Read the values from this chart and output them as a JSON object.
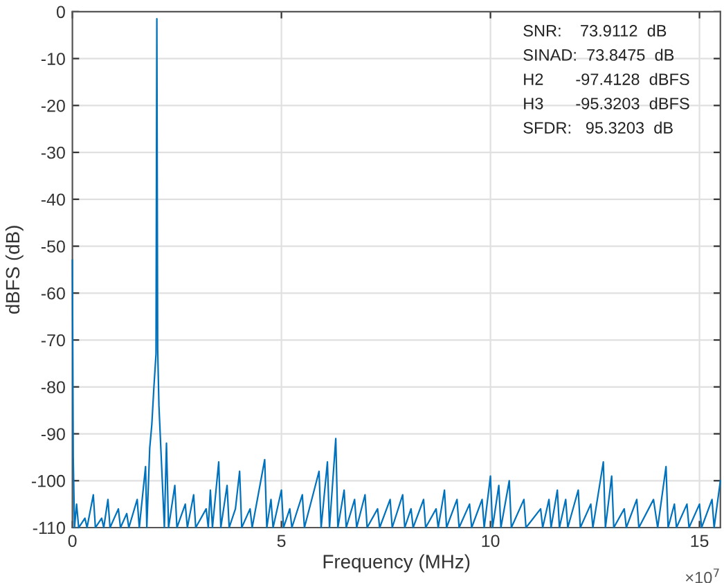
{
  "chart_data": {
    "type": "line",
    "xlabel": "Frequency (MHz)",
    "ylabel": "dBFS (dB)",
    "xlim": [
      0,
      15.5
    ],
    "xticks": [
      0,
      5,
      10,
      15
    ],
    "ylim": [
      -110,
      0
    ],
    "yticks": [
      -110,
      -100,
      -90,
      -80,
      -70,
      -60,
      -50,
      -40,
      -30,
      -20,
      -10,
      0
    ],
    "grid": true,
    "annotations": [
      "SNR:    73.9112  dB",
      "SINAD:  73.8475  dB",
      "H2       -97.4128  dBFS",
      "H3       -95.3203  dBFS",
      "SFDR:   95.3203  dB",
      "×10$^{7}$"
    ],
    "series": [
      {
        "color": "#0072bd",
        "x": [
          0,
          0.02,
          0.05,
          0.1,
          0.15,
          0.3,
          0.35,
          0.5,
          0.55,
          0.7,
          0.75,
          0.85,
          0.9,
          1.1,
          1.15,
          1.3,
          1.35,
          1.55,
          1.6,
          1.75,
          1.78,
          1.85,
          1.9,
          1.95,
          2.0,
          2.02,
          2.04,
          2.07,
          2.1,
          2.15,
          2.2,
          2.25,
          2.3,
          2.45,
          2.5,
          2.7,
          2.75,
          2.9,
          2.95,
          3.2,
          3.25,
          3.3,
          3.35,
          3.5,
          3.55,
          3.7,
          3.75,
          3.9,
          4.0,
          4.05,
          4.25,
          4.3,
          4.6,
          4.65,
          4.75,
          4.8,
          5.0,
          5.05,
          5.2,
          5.25,
          5.5,
          5.55,
          5.9,
          5.95,
          6.1,
          6.15,
          6.3,
          6.35,
          6.5,
          6.55,
          6.75,
          6.8,
          7.0,
          7.05,
          7.3,
          7.35,
          7.6,
          7.65,
          7.9,
          7.95,
          8.1,
          8.15,
          8.4,
          8.45,
          8.7,
          8.75,
          8.9,
          8.95,
          9.2,
          9.25,
          9.5,
          9.55,
          9.8,
          9.85,
          10.0,
          10.05,
          10.2,
          10.25,
          10.45,
          10.5,
          10.8,
          10.85,
          11.2,
          11.25,
          11.4,
          11.45,
          11.6,
          11.65,
          11.8,
          11.85,
          12.1,
          12.15,
          12.4,
          12.45,
          12.7,
          12.75,
          12.9,
          12.95,
          13.2,
          13.25,
          13.5,
          13.55,
          13.9,
          14.0,
          14.2,
          14.25,
          14.4,
          14.45,
          14.7,
          14.75,
          15.0,
          15.05,
          15.3,
          15.35,
          15.5
        ],
        "values": [
          -53,
          -95,
          -110,
          -105,
          -110,
          -108,
          -110,
          -103,
          -110,
          -108,
          -110,
          -104,
          -110,
          -106,
          -110,
          -107,
          -110,
          -104,
          -110,
          -97,
          -110,
          -93,
          -88,
          -80,
          -73,
          -1.5,
          -72,
          -84,
          -90,
          -100,
          -110,
          -92,
          -110,
          -101,
          -110,
          -105,
          -110,
          -103,
          -110,
          -106,
          -110,
          -102,
          -110,
          -96,
          -110,
          -101,
          -110,
          -106,
          -98,
          -110,
          -106,
          -110,
          -95.5,
          -110,
          -104,
          -110,
          -102,
          -110,
          -106,
          -110,
          -103,
          -110,
          -98,
          -110,
          -96,
          -110,
          -91,
          -110,
          -102,
          -110,
          -104,
          -110,
          -103,
          -110,
          -106,
          -110,
          -104,
          -110,
          -103,
          -110,
          -106,
          -110,
          -104,
          -110,
          -106,
          -110,
          -102,
          -110,
          -104,
          -110,
          -105,
          -110,
          -104,
          -110,
          -99,
          -110,
          -101,
          -110,
          -100,
          -110,
          -104,
          -110,
          -106,
          -110,
          -104,
          -110,
          -102,
          -110,
          -104,
          -110,
          -102,
          -110,
          -105,
          -110,
          -96,
          -110,
          -99,
          -110,
          -106,
          -110,
          -104,
          -110,
          -104,
          -110,
          -97,
          -110,
          -105,
          -110,
          -105,
          -110,
          -105,
          -110,
          -104,
          -110,
          -100
        ]
      }
    ]
  }
}
